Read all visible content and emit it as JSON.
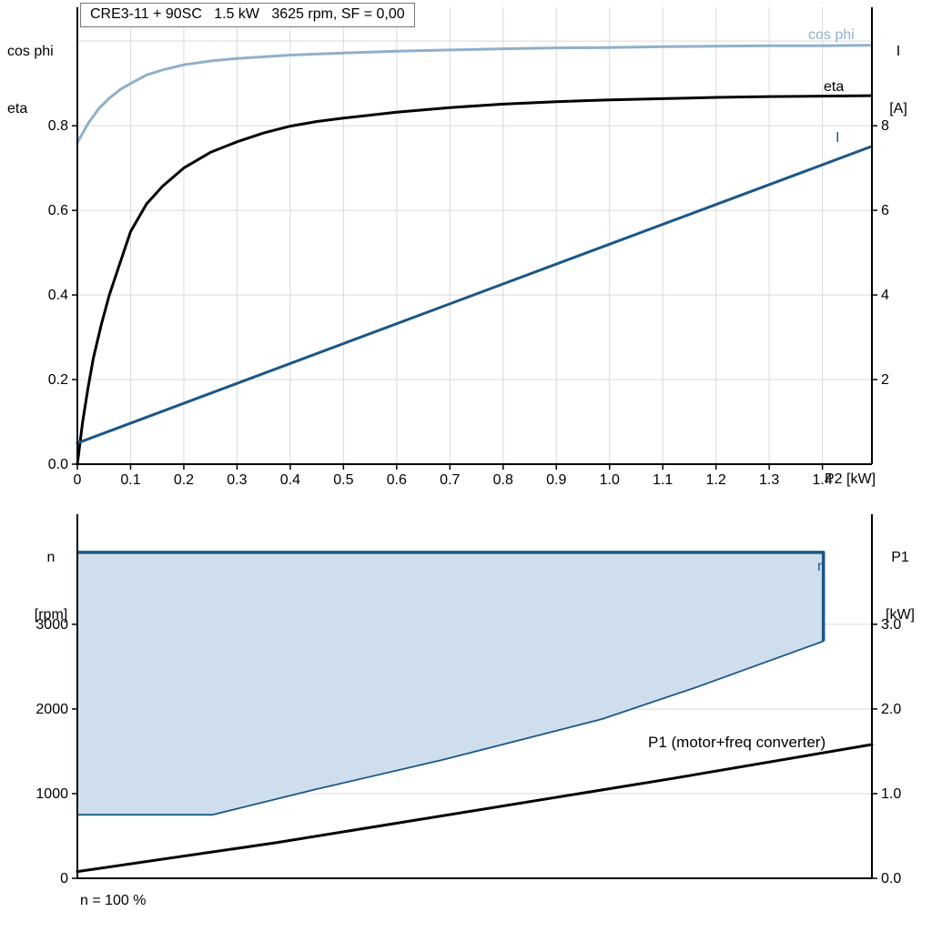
{
  "style": {
    "background": "#ffffff",
    "grid_color": "#d9d9d9",
    "axis_color": "#000000",
    "dark_blue": "#1b5786",
    "light_blue": "#8fb0cc",
    "area_fill": "#cfdeec",
    "text_color": "#000000"
  },
  "chart_data": [
    {
      "type": "line",
      "title": "CRE3-11 + 90SC   1.5 kW   3625 rpm, SF = 0,00",
      "x_axis": {
        "label": "P2 [kW]",
        "range": [
          0,
          1.493
        ],
        "ticks": [
          0,
          0.1,
          0.2,
          0.3,
          0.4,
          0.5,
          0.6,
          0.7,
          0.8,
          0.9,
          1.0,
          1.1,
          1.2,
          1.3,
          1.4
        ],
        "tick_labels": [
          "0",
          "0.1",
          "0.2",
          "0.3",
          "0.4",
          "0.5",
          "0.6",
          "0.7",
          "0.8",
          "0.9",
          "1.0",
          "1.1",
          "1.2",
          "1.3",
          "1.4"
        ],
        "gridlines": [
          0.1,
          0.2,
          0.3,
          0.4,
          0.5,
          0.6,
          0.7,
          0.8,
          0.9,
          1.0,
          1.1,
          1.2,
          1.3,
          1.4
        ]
      },
      "left_axis": {
        "title_lines": [
          "cos phi",
          "eta"
        ],
        "range": [
          0,
          1.08
        ],
        "ticks": [
          0,
          0.2,
          0.4,
          0.6,
          0.8
        ],
        "tick_labels": [
          "0.0",
          "0.2",
          "0.4",
          "0.6",
          "0.8"
        ],
        "gridlines": [
          0.2,
          0.4,
          0.6,
          0.8,
          1.0
        ]
      },
      "right_axis": {
        "title_lines": [
          "I",
          "[A]"
        ],
        "range": [
          0,
          10.8
        ],
        "ticks": [
          2,
          4,
          6,
          8
        ],
        "tick_labels": [
          "2",
          "4",
          "6",
          "8"
        ]
      },
      "series": [
        {
          "name": "cos phi",
          "axis": "left",
          "color": "#8fb0cc",
          "width": 3,
          "points": [
            [
              0,
              0.76
            ],
            [
              0.02,
              0.805
            ],
            [
              0.04,
              0.84
            ],
            [
              0.06,
              0.865
            ],
            [
              0.08,
              0.885
            ],
            [
              0.1,
              0.9
            ],
            [
              0.13,
              0.92
            ],
            [
              0.16,
              0.932
            ],
            [
              0.2,
              0.944
            ],
            [
              0.25,
              0.953
            ],
            [
              0.3,
              0.959
            ],
            [
              0.35,
              0.963
            ],
            [
              0.4,
              0.967
            ],
            [
              0.5,
              0.972
            ],
            [
              0.6,
              0.976
            ],
            [
              0.7,
              0.979
            ],
            [
              0.8,
              0.982
            ],
            [
              0.9,
              0.984
            ],
            [
              1.0,
              0.985
            ],
            [
              1.1,
              0.987
            ],
            [
              1.2,
              0.988
            ],
            [
              1.3,
              0.989
            ],
            [
              1.4,
              0.989
            ],
            [
              1.49,
              0.99
            ]
          ]
        },
        {
          "name": "eta",
          "axis": "left",
          "color": "#000000",
          "width": 3,
          "points": [
            [
              0,
              0
            ],
            [
              0.01,
              0.1
            ],
            [
              0.02,
              0.18
            ],
            [
              0.03,
              0.25
            ],
            [
              0.045,
              0.33
            ],
            [
              0.06,
              0.4
            ],
            [
              0.08,
              0.475
            ],
            [
              0.1,
              0.55
            ],
            [
              0.13,
              0.615
            ],
            [
              0.16,
              0.657
            ],
            [
              0.2,
              0.7
            ],
            [
              0.25,
              0.737
            ],
            [
              0.3,
              0.762
            ],
            [
              0.35,
              0.783
            ],
            [
              0.4,
              0.799
            ],
            [
              0.45,
              0.81
            ],
            [
              0.5,
              0.818
            ],
            [
              0.6,
              0.832
            ],
            [
              0.7,
              0.843
            ],
            [
              0.8,
              0.851
            ],
            [
              0.9,
              0.857
            ],
            [
              1.0,
              0.861
            ],
            [
              1.1,
              0.864
            ],
            [
              1.2,
              0.867
            ],
            [
              1.3,
              0.869
            ],
            [
              1.4,
              0.87
            ],
            [
              1.49,
              0.871
            ]
          ]
        },
        {
          "name": "I",
          "axis": "right",
          "color": "#1b5786",
          "width": 3,
          "points": [
            [
              0,
              0.5
            ],
            [
              0.5,
              2.85
            ],
            [
              1.0,
              5.2
            ],
            [
              1.49,
              7.5
            ]
          ]
        }
      ]
    },
    {
      "type": "area",
      "x_axis": {
        "label": "",
        "range": [
          0,
          1
        ],
        "ticks": [],
        "tick_labels": [],
        "gridlines": []
      },
      "left_axis": {
        "title_lines": [
          "n",
          "[rpm]"
        ],
        "range": [
          0,
          4300
        ],
        "ticks": [
          0,
          1000,
          2000,
          3000
        ],
        "tick_labels": [
          "0",
          "1000",
          "2000",
          "3000"
        ],
        "gridlines": [
          1000,
          2000,
          3000
        ]
      },
      "right_axis": {
        "title_lines": [
          "P1",
          "[kW]"
        ],
        "range": [
          0,
          4.3
        ],
        "ticks": [
          0,
          1,
          2,
          3
        ],
        "tick_labels": [
          "0.0",
          "1.0",
          "2.0",
          "3.0"
        ]
      },
      "area": {
        "name": "n",
        "fill": "#cfdeec",
        "edge_color": "#1b5786",
        "top_line": [
          [
            0,
            3850
          ],
          [
            0.939,
            3850
          ],
          [
            0.939,
            2800
          ]
        ],
        "lower_line": [
          [
            0,
            750
          ],
          [
            0.17,
            750
          ],
          [
            0.3,
            1050
          ],
          [
            0.46,
            1400
          ],
          [
            0.66,
            1880
          ],
          [
            0.78,
            2260
          ],
          [
            0.939,
            2800
          ]
        ]
      },
      "series": [
        {
          "name": "P1 (motor+freq converter)",
          "axis": "right",
          "color": "#000000",
          "width": 3,
          "points": [
            [
              0,
              0.08
            ],
            [
              0.25,
              0.42
            ],
            [
              0.5,
              0.8
            ],
            [
              0.75,
              1.18
            ],
            [
              1,
              1.58
            ]
          ]
        }
      ],
      "footnote": "n = 100 %"
    }
  ]
}
